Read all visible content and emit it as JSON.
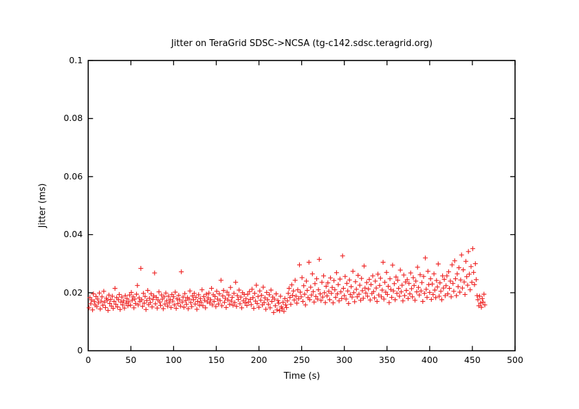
{
  "page": {
    "background": "#ffffff"
  },
  "chart_data": {
    "type": "scatter",
    "title": "Jitter on TeraGrid SDSC->NCSA (tg-c142.sdsc.teragrid.org)",
    "xlabel": "Time (s)",
    "ylabel": "Jitter (ms)",
    "xlim": [
      0,
      500
    ],
    "ylim": [
      0,
      0.1
    ],
    "x_ticks": [
      0,
      50,
      100,
      150,
      200,
      250,
      300,
      350,
      400,
      450,
      500
    ],
    "x_tick_labels": [
      "0",
      "50",
      "100",
      "150",
      "200",
      "250",
      "300",
      "350",
      "400",
      "450",
      "500"
    ],
    "y_ticks": [
      0,
      0.02,
      0.04,
      0.06,
      0.08,
      0.1
    ],
    "y_tick_labels": [
      "0",
      "0.02",
      "0.04",
      "0.06",
      "0.08",
      "0.1"
    ],
    "grid": false,
    "legend": "none",
    "axis_color": "#000000",
    "marker": {
      "shape": "plus",
      "color": "#ee2222",
      "size": 7
    },
    "series": [
      {
        "name": "jitter",
        "x_start": 1,
        "x_step": 1.01,
        "y_unit": 0.0001,
        "y_values": [
          148,
          183,
          162,
          175,
          141,
          196,
          170,
          158,
          187,
          152,
          178,
          165,
          199,
          144,
          171,
          186,
          157,
          205,
          168,
          149,
          181,
          174,
          139,
          192,
          163,
          177,
          154,
          188,
          146,
          170,
          215,
          160,
          183,
          151,
          176,
          194,
          142,
          168,
          185,
          158,
          172,
          147,
          190,
          164,
          179,
          155,
          169,
          192,
          157,
          201,
          174,
          186,
          148,
          178,
          163,
          195,
          225,
          158,
          182,
          170,
          284,
          176,
          153,
          198,
          164,
          187,
          142,
          173,
          208,
          159,
          181,
          166,
          196,
          151,
          177,
          189,
          268,
          162,
          184,
          147,
          175,
          203,
          168,
          156,
          192,
          178,
          145,
          186,
          161,
          199,
          172,
          154,
          188,
          165,
          177,
          149,
          194,
          171,
          186,
          158,
          202,
          146,
          179,
          163,
          191,
          175,
          154,
          272,
          168,
          185,
          150,
          197,
          173,
          160,
          183,
          145,
          178,
          206,
          166,
          152,
          189,
          176,
          198,
          161,
          184,
          143,
          170,
          193,
          157,
          180,
          167,
          210,
          155,
          187,
          174,
          148,
          195,
          169,
          182,
          199,
          164,
          176,
          215,
          158,
          193,
          170,
          187,
          152,
          205,
          178,
          161,
          196,
          173,
          243,
          155,
          189,
          208,
          167,
          181,
          149,
          202,
          175,
          192,
          160,
          218,
          171,
          184,
          157,
          198,
          166,
          236,
          153,
          190,
          177,
          209,
          162,
          185,
          148,
          200,
          172,
          194,
          165,
          179,
          156,
          195,
          168,
          204,
          177,
          159,
          212,
          183,
          146,
          198,
          171,
          226,
          163,
          187,
          150,
          206,
          174,
          191,
          158,
          219,
          166,
          182,
          143,
          201,
          176,
          160,
          193,
          148,
          209,
          170,
          185,
          132,
          178,
          155,
          196,
          141,
          173,
          164,
          138,
          188,
          151,
          145,
          167,
          136,
          180,
          158,
          149,
          172,
          198,
          215,
          184,
          160,
          227,
          191,
          206,
          175,
          243,
          188,
          164,
          210,
          179,
          296,
          202,
          186,
          252,
          170,
          224,
          195,
          158,
          240,
          208,
          183,
          305,
          176,
          219,
          192,
          265,
          204,
          168,
          231,
          187,
          248,
          178,
          210,
          315,
          196,
          173,
          236,
          185,
          258,
          200,
          166,
          222,
          189,
          234,
          205,
          176,
          251,
          198,
          218,
          165,
          242,
          210,
          184,
          269,
          196,
          228,
          172,
          247,
          203,
          180,
          327,
          215,
          190,
          256,
          178,
          232,
          206,
          163,
          244,
          194,
          221,
          185,
          274,
          200,
          169,
          238,
          212,
          186,
          260,
          195,
          226,
          174,
          249,
          207,
          181,
          292,
          216,
          199,
          235,
          188,
          213,
          246,
          175,
          228,
          197,
          258,
          204,
          182,
          240,
          216,
          170,
          264,
          192,
          225,
          250,
          186,
          209,
          305,
          178,
          236,
          202,
          270,
          194,
          222,
          166,
          248,
          211,
          184,
          295,
          206,
          231,
          176,
          254,
          198,
          243,
          215,
          188,
          278,
          203,
          226,
          172,
          261,
          190,
          237,
          208,
          245,
          180,
          232,
          196,
          268,
          214,
          186,
          252,
          225,
          174,
          240,
          203,
          288,
          218,
          192,
          262,
          206,
          235,
          170,
          256,
          198,
          320,
          212,
          184,
          274,
          228,
          201,
          248,
          177,
          230,
          194,
          265,
          209,
          183,
          242,
          220,
          299,
          188,
          234,
          205,
          176,
          258,
          216,
          246,
          190,
          224,
          258,
          196,
          272,
          215,
          240,
          186,
          296,
          232,
          205,
          310,
          248,
          190,
          265,
          221,
          286,
          202,
          244,
          330,
          216,
          279,
          237,
          194,
          308,
          255,
          226,
          342,
          264,
          210,
          290,
          236,
          352,
          270,
          228,
          300,
          245,
          190,
          176,
          155,
          188,
          164,
          150,
          180,
          168,
          195,
          158
        ]
      }
    ]
  }
}
